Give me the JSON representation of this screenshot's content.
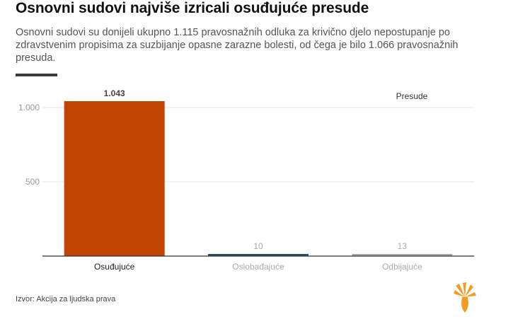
{
  "title": "Osnovni sudovi najviše izricali osuđujuće presude",
  "subtitle": "Osnovni sudovi su donijeli ukupno 1.115 pravosnažnih odluka za krivično djelo nepostupanje po zdravstvenim propisima za suzbijanje opasne zarazne bolesti, od čega je bilo 1.066 pravosnažnih presuda.",
  "source": "Izvor: Akcija za ljudska prava",
  "logo_icon": "rferl-flame-logo-icon",
  "colors": {
    "osudjujuce": "#c14400",
    "oslobadjajuce": "#1f4e79",
    "odbijajuce": "#a6a6a6",
    "grid": "#e6e6e6",
    "axis": "#333333",
    "tick_text": "#999999",
    "logo": "#f39c24"
  },
  "chart_data": {
    "type": "bar",
    "categories": [
      "Osuđujuće",
      "Oslobađajuće",
      "Odbijajuće"
    ],
    "values": [
      1043,
      10,
      13
    ],
    "value_labels": [
      "1.043",
      "10",
      "13"
    ],
    "series_name": "Presude",
    "yticks": [
      500,
      1000
    ],
    "ytick_labels": [
      "500",
      "1.000"
    ],
    "ylim": [
      0,
      1000
    ],
    "grid": true,
    "legend_position": "top-right",
    "highlighted_category": "Osuđujuće"
  }
}
